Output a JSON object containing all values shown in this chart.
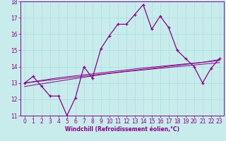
{
  "xlabel": "Windchill (Refroidissement éolien,°C)",
  "ylabel": "",
  "bg_color": "#c8ecec",
  "line_color": "#880088",
  "grid_color": "#aadddd",
  "x_data": [
    0,
    1,
    2,
    3,
    4,
    5,
    6,
    7,
    8,
    9,
    10,
    11,
    12,
    13,
    14,
    15,
    16,
    17,
    18,
    19,
    20,
    21,
    22,
    23
  ],
  "main_line": [
    13.0,
    13.4,
    12.8,
    12.2,
    12.2,
    11.0,
    12.1,
    14.0,
    13.3,
    15.1,
    15.9,
    16.6,
    16.6,
    17.2,
    17.8,
    16.3,
    17.1,
    16.4,
    15.0,
    14.5,
    14.0,
    13.0,
    13.9,
    14.5
  ],
  "reg_line1": [
    13.0,
    13.06,
    13.12,
    13.18,
    13.24,
    13.3,
    13.36,
    13.42,
    13.48,
    13.54,
    13.6,
    13.66,
    13.72,
    13.78,
    13.84,
    13.9,
    13.96,
    14.02,
    14.08,
    14.14,
    14.2,
    14.26,
    14.32,
    14.38
  ],
  "reg_line2": [
    12.78,
    12.87,
    12.95,
    13.03,
    13.11,
    13.19,
    13.27,
    13.35,
    13.43,
    13.51,
    13.58,
    13.64,
    13.7,
    13.75,
    13.8,
    13.85,
    13.9,
    13.95,
    14.0,
    14.05,
    14.1,
    14.15,
    14.2,
    14.25
  ],
  "reg_line3": [
    13.0,
    13.08,
    13.16,
    13.24,
    13.32,
    13.38,
    13.44,
    13.5,
    13.56,
    13.62,
    13.68,
    13.74,
    13.8,
    13.86,
    13.92,
    13.97,
    14.02,
    14.07,
    14.12,
    14.17,
    14.22,
    14.27,
    14.35,
    14.44
  ],
  "ylim": [
    11,
    18
  ],
  "xlim": [
    0,
    23
  ],
  "yticks": [
    11,
    12,
    13,
    14,
    15,
    16,
    17,
    18
  ],
  "xticks": [
    0,
    1,
    2,
    3,
    4,
    5,
    6,
    7,
    8,
    9,
    10,
    11,
    12,
    13,
    14,
    15,
    16,
    17,
    18,
    19,
    20,
    21,
    22,
    23
  ]
}
